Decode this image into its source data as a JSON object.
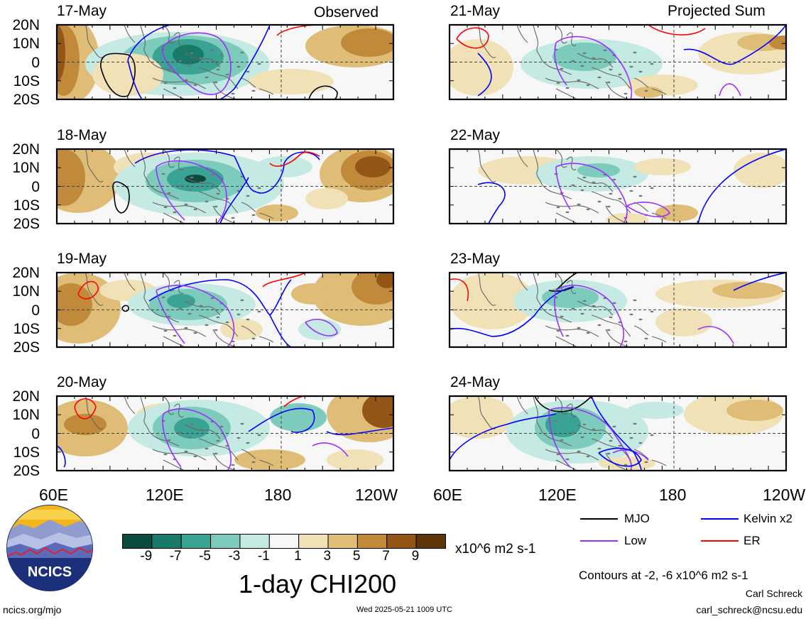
{
  "headers": {
    "observed": "Observed",
    "projected": "Projected Sum"
  },
  "observed_dates": [
    "17-May",
    "18-May",
    "19-May",
    "20-May"
  ],
  "projected_dates": [
    "21-May",
    "22-May",
    "23-May",
    "24-May"
  ],
  "lat_labels": [
    "20N",
    "10N",
    "0",
    "10S",
    "20S"
  ],
  "lon_labels": [
    "60E",
    "120E",
    "180",
    "120W"
  ],
  "colorbar": {
    "ticks": [
      "-9",
      "-7",
      "-5",
      "-3",
      "-1",
      "1",
      "3",
      "5",
      "7",
      "9"
    ],
    "colors": [
      "#0b4a3e",
      "#1a7a6a",
      "#3aa394",
      "#7ccbbd",
      "#c5e9e3",
      "#f7f7f7",
      "#f1e1b7",
      "#dfbd76",
      "#c18a3a",
      "#945617",
      "#5e3508"
    ],
    "units": "x10^6 m2 s-1"
  },
  "title": "1-day CHI200",
  "legend": {
    "items": [
      {
        "label": "MJO",
        "color": "#000000"
      },
      {
        "label": "Kelvin x2",
        "color": "#0000ff"
      },
      {
        "label": "Low",
        "color": "#9b30ff"
      },
      {
        "label": "ER",
        "color": "#ff0000"
      }
    ],
    "contours_note": "Contours at -2, -6 x10^6 m2 s-1"
  },
  "logo_text": "NCICS",
  "footer": {
    "url": "ncics.org/mjo",
    "timestamp": "Wed 2025-05-21 1009 UTC",
    "author": "Carl Schreck",
    "email": "carl_schreck@ncsu.edu"
  }
}
